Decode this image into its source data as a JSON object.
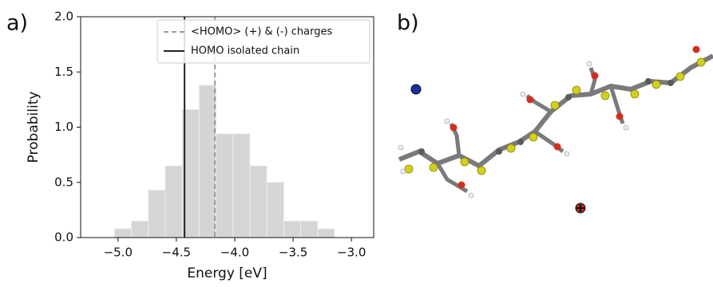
{
  "panel_labels": [
    "a)",
    "b)"
  ],
  "chart_data": {
    "type": "histogram",
    "xlabel": "Energy [eV]",
    "ylabel": "Probability",
    "bins": [
      -5.03,
      -4.885,
      -4.74,
      -4.595,
      -4.45,
      -4.305,
      -4.16,
      -4.015,
      -3.87,
      -3.725,
      -3.58,
      -3.435,
      -3.29,
      -3.145
    ],
    "counts": [
      0.08,
      0.15,
      0.43,
      0.65,
      1.16,
      1.38,
      0.94,
      0.94,
      0.65,
      0.5,
      0.15,
      0.15,
      0.08
    ],
    "color": "#d5d5d5",
    "xlim": [
      -5.32,
      -2.81
    ],
    "ylim": [
      0,
      2.0
    ],
    "xticks": [
      {
        "value": -5.0,
        "label": "−5.0"
      },
      {
        "value": -4.5,
        "label": "−4.5"
      },
      {
        "value": -4.0,
        "label": "−4.0"
      },
      {
        "value": -3.5,
        "label": "−3.5"
      },
      {
        "value": -3.0,
        "label": "−3.0"
      }
    ],
    "yticks": [
      {
        "value": 0,
        "label": "0.0"
      },
      0.5,
      {
        "value": 1.0,
        "label": "1.0"
      },
      1.5,
      {
        "value": 2.0,
        "label": "2.0"
      }
    ],
    "lines": [
      {
        "name": "<HOMO> (+) & (-) charges",
        "x": -4.17,
        "color": "#9a9a9a",
        "dashed": true
      },
      {
        "name": "HOMO isolated chain",
        "x": -4.43,
        "color": "#222222",
        "dashed": false
      }
    ],
    "legend": "upper right"
  }
}
